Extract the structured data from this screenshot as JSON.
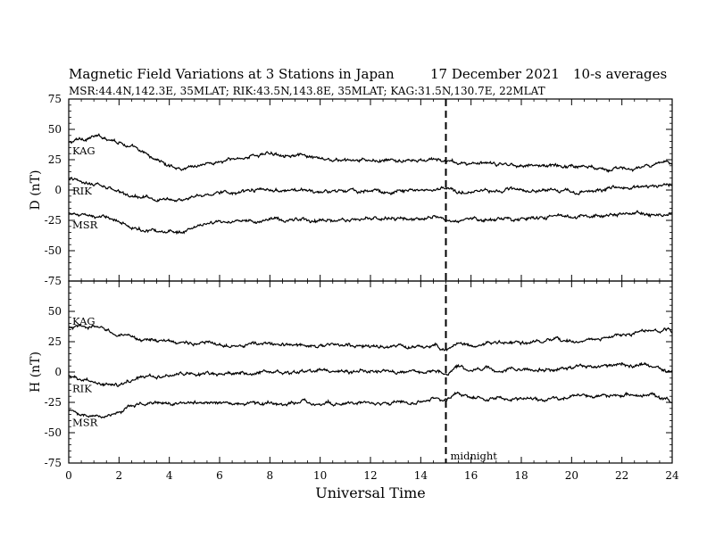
{
  "header": {
    "title": "Magnetic Field Variations at 3 Stations in Japan",
    "date": "17 December 2021",
    "averaging": "10-s averages",
    "stations_line": "MSR:44.4N,142.3E, 35MLAT;  RIK:43.5N,143.8E, 35MLAT;  KAG:31.5N,130.7E, 22MLAT"
  },
  "chart_data": [
    {
      "type": "line",
      "panel": "D",
      "ylabel": "D (nT)",
      "ylim": [
        -75,
        75
      ],
      "yticks": [
        -75,
        -50,
        -25,
        0,
        25,
        50,
        75
      ],
      "xlim": [
        0,
        24
      ],
      "xticks": [
        0,
        2,
        4,
        6,
        8,
        10,
        12,
        14,
        16,
        18,
        20,
        22,
        24
      ],
      "series": [
        {
          "name": "KAG",
          "x": [
            0,
            0.5,
            1,
            1.5,
            2,
            2.5,
            3,
            3.5,
            4,
            4.5,
            5,
            5.5,
            6,
            6.5,
            7,
            7.5,
            8,
            8.5,
            9,
            9.5,
            10,
            11,
            12,
            13,
            14,
            14.5,
            15,
            15.5,
            16,
            17,
            18,
            19,
            20,
            21,
            22,
            23,
            24
          ],
          "y": [
            39,
            42,
            44,
            43,
            40,
            35,
            30,
            25,
            20,
            18,
            20,
            22,
            23,
            25,
            27,
            29,
            30,
            30,
            29,
            27,
            25,
            24,
            24,
            24,
            24,
            25,
            24,
            22,
            22,
            21,
            21,
            20,
            20,
            19,
            17,
            19,
            23
          ]
        },
        {
          "name": "RIK",
          "x": [
            0,
            0.5,
            1,
            1.5,
            2,
            2.5,
            3,
            3.5,
            4,
            4.5,
            5,
            5.5,
            6,
            7,
            8,
            9,
            10,
            11,
            12,
            13,
            14,
            15,
            15.5,
            16,
            17,
            18,
            19,
            20,
            21,
            22,
            23,
            24
          ],
          "y": [
            9,
            7,
            5,
            2,
            -2,
            -5,
            -7,
            -7,
            -7,
            -8,
            -5,
            -3,
            -2,
            -1,
            0,
            -1,
            -2,
            -1,
            -1,
            -1,
            0,
            1,
            -1,
            -1,
            0,
            0,
            0,
            -1,
            0,
            2,
            3,
            4
          ]
        },
        {
          "name": "MSR",
          "x": [
            0,
            0.5,
            1,
            1.5,
            2,
            2.5,
            3,
            3.5,
            4,
            4.5,
            5,
            5.5,
            6,
            7,
            8,
            9,
            10,
            11,
            12,
            13,
            14,
            14.5,
            15,
            15.5,
            16,
            17,
            18,
            19,
            20,
            21,
            22,
            23,
            24
          ],
          "y": [
            -19,
            -21,
            -23,
            -22,
            -26,
            -31,
            -33,
            -33,
            -33,
            -34,
            -31,
            -28,
            -27,
            -26,
            -24,
            -24,
            -26,
            -25,
            -24,
            -24,
            -24,
            -22,
            -25,
            -26,
            -24,
            -24,
            -23,
            -23,
            -22,
            -22,
            -20,
            -20,
            -19
          ]
        }
      ]
    },
    {
      "type": "line",
      "panel": "H",
      "ylabel": "H (nT)",
      "ylim": [
        -75,
        75
      ],
      "yticks": [
        -75,
        -50,
        -25,
        0,
        25,
        50
      ],
      "xlim": [
        0,
        24
      ],
      "xticks": [
        0,
        2,
        4,
        6,
        8,
        10,
        12,
        14,
        16,
        18,
        20,
        22,
        24
      ],
      "xlabel": "Universal Time",
      "series": [
        {
          "name": "KAG",
          "x": [
            0,
            0.5,
            1,
            1.5,
            2,
            2.5,
            3,
            4,
            5,
            6,
            7,
            8,
            9,
            10,
            11,
            12,
            13,
            14,
            14.5,
            15,
            15.5,
            16,
            17,
            18,
            19,
            20,
            21,
            22,
            23,
            24
          ],
          "y": [
            36,
            37,
            37,
            35,
            30,
            28,
            27,
            25,
            24,
            23,
            23,
            23,
            22,
            22,
            22,
            21,
            21,
            20,
            22,
            19,
            24,
            22,
            24,
            24,
            25,
            26,
            27,
            30,
            34,
            34
          ]
        },
        {
          "name": "RIK",
          "x": [
            0,
            0.5,
            1,
            1.5,
            2,
            2.5,
            3,
            3.5,
            4,
            5,
            6,
            7,
            8,
            9,
            10,
            11,
            12,
            13,
            14,
            14.5,
            15,
            15.5,
            16,
            17,
            18,
            19,
            20,
            21,
            22,
            23,
            24
          ],
          "y": [
            -4,
            -6,
            -10,
            -11,
            -11,
            -7,
            -4,
            -3,
            -2,
            -2,
            -1,
            -1,
            0,
            0,
            1,
            0,
            1,
            0,
            0,
            3,
            -2,
            5,
            2,
            2,
            2,
            2,
            4,
            5,
            6,
            5,
            0
          ]
        },
        {
          "name": "MSR",
          "x": [
            0,
            0.5,
            1,
            1.5,
            2,
            2.5,
            3,
            3.5,
            4,
            5,
            6,
            7,
            8,
            9,
            10,
            11,
            12,
            13,
            14,
            14.5,
            15,
            15.5,
            16,
            17,
            18,
            19,
            20,
            21,
            22,
            23,
            24
          ],
          "y": [
            -32,
            -35,
            -37,
            -37,
            -34,
            -28,
            -26,
            -25,
            -26,
            -25,
            -26,
            -26,
            -26,
            -25,
            -26,
            -25,
            -26,
            -25,
            -25,
            -21,
            -24,
            -18,
            -21,
            -22,
            -22,
            -22,
            -20,
            -20,
            -18,
            -19,
            -24
          ]
        }
      ]
    }
  ],
  "annotations": {
    "midnight_label": "midnight",
    "midnight_ut": 15
  }
}
